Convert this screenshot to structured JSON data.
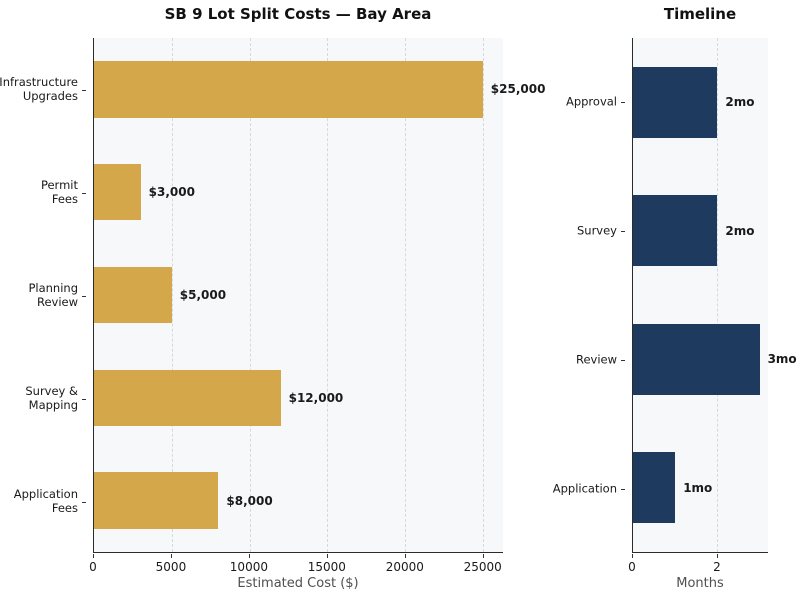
{
  "figure": {
    "background": "#ffffff",
    "plot_background": "#f7f8fa",
    "grid_color": "#d4d9dd",
    "spine_color": "#2b2b2b"
  },
  "chart_data": [
    {
      "type": "bar",
      "orientation": "horizontal",
      "title": "SB 9 Lot Split Costs — Bay Area",
      "categories": [
        "Infrastructure\nUpgrades",
        "Permit\nFees",
        "Planning\nReview",
        "Survey &\nMapping",
        "Application\nFees"
      ],
      "values": [
        25000,
        3000,
        5000,
        12000,
        8000
      ],
      "value_labels": [
        "$25,000",
        "$3,000",
        "$5,000",
        "$12,000",
        "$8,000"
      ],
      "xlabel": "Estimated Cost ($)",
      "xlim": [
        0,
        26300
      ],
      "xticks": [
        0,
        5000,
        10000,
        15000,
        20000,
        25000
      ],
      "xtick_labels": [
        "0",
        "5000",
        "10000",
        "15000",
        "20000",
        "25000"
      ],
      "bar_color": "#d5a74b",
      "grid": true,
      "legend": null
    },
    {
      "type": "bar",
      "orientation": "horizontal",
      "title": "Timeline",
      "categories": [
        "Approval",
        "Survey",
        "Review",
        "Application"
      ],
      "values": [
        2,
        2,
        3,
        1
      ],
      "value_labels": [
        "2mo",
        "2mo",
        "3mo",
        "1mo"
      ],
      "xlabel": "Months",
      "xlim": [
        0,
        3.2
      ],
      "xticks": [
        0,
        2
      ],
      "xtick_labels": [
        "0",
        "2"
      ],
      "bar_color": "#1f3a5f",
      "grid": true,
      "legend": null
    }
  ]
}
